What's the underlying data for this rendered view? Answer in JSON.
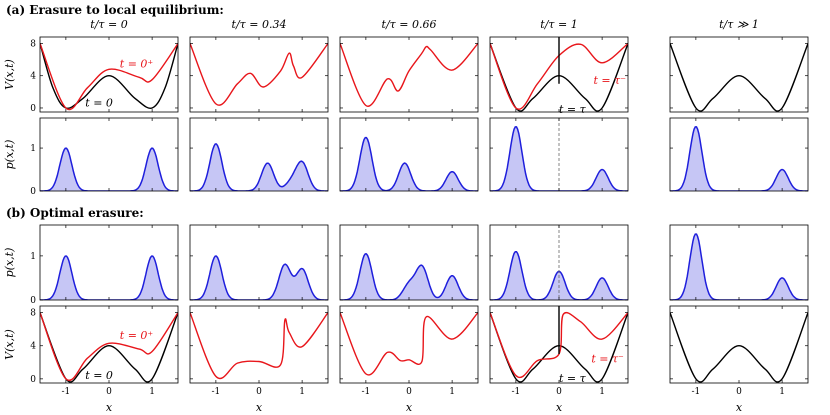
{
  "section_titles": {
    "a": "(a) Erasure to local equilibrium:",
    "b": "(b) Optimal erasure:"
  },
  "column_titles": [
    "t/τ = 0",
    "t/τ = 0.34",
    "t/τ = 0.66",
    "t/τ = 1",
    "t/τ ≫ 1"
  ],
  "axis_labels": {
    "V": "V(x,t)",
    "p": "p(x,t)",
    "x": "x"
  },
  "annotations": {
    "t0plus": "t = 0⁺",
    "t0": "t = 0",
    "ttau_minus": "t = τ⁻",
    "ttau": "t = τ"
  },
  "colors": {
    "V_initial": "#000000",
    "V_driven": "#e8161b",
    "p_line": "#1f1fdc",
    "p_fill": "#c6c6f5"
  },
  "chart_data": [
    {
      "type": "line",
      "title": "(a) Erasure to local equilibrium: potential V(x,t)",
      "x_ticks": [
        -1,
        0,
        1
      ],
      "y_ticks": [
        0,
        4,
        8
      ],
      "ylim": [
        -0.5,
        8.8
      ],
      "xlim": [
        -1.6,
        1.6
      ],
      "panels": [
        {
          "column": "t/τ = 0",
          "series": [
            {
              "name": "t = 0",
              "x": [
                -1.6,
                -1.3,
                -1,
                -0.6,
                0,
                0.6,
                1,
                1.3,
                1.6
              ],
              "y": [
                8,
                2.5,
                0,
                1.2,
                4,
                1.2,
                0,
                2.5,
                8
              ]
            },
            {
              "name": "t = 0⁺",
              "x": [
                -1.6,
                -1,
                -0.5,
                0,
                0.7,
                1,
                1.6
              ],
              "y": [
                8,
                0,
                2.5,
                4.8,
                3.8,
                3.5,
                8
              ]
            }
          ]
        },
        {
          "column": "t/τ = 0.34",
          "series": [
            {
              "name": "",
              "x": [
                -1.6,
                -1,
                -0.5,
                -0.2,
                0.1,
                0.5,
                0.7,
                0.8,
                1.0,
                1.6
              ],
              "y": [
                8,
                0.5,
                3,
                4.3,
                2.6,
                4.6,
                6.8,
                5.2,
                3.8,
                8
              ]
            }
          ]
        },
        {
          "column": "t/τ = 0.66",
          "series": [
            {
              "name": "",
              "x": [
                -1.6,
                -1,
                -0.5,
                -0.25,
                0,
                0.3,
                0.4,
                0.5,
                1.0,
                1.6
              ],
              "y": [
                8,
                0.3,
                3.6,
                2.1,
                4.6,
                6.8,
                7.6,
                7.2,
                4.7,
                8
              ]
            }
          ]
        },
        {
          "column": "t/τ = 1",
          "series": [
            {
              "name": "t = τ",
              "x": [
                -1.6,
                -1,
                -0.6,
                0,
                0.6,
                1,
                1.6
              ],
              "y": [
                8,
                0,
                1.2,
                4,
                1.2,
                0,
                8
              ]
            },
            {
              "name": "t = τ⁻",
              "x": [
                -1.6,
                -1,
                -0.5,
                0,
                0.5,
                1,
                1.6
              ],
              "y": [
                8,
                0,
                3,
                6.5,
                7.9,
                5.6,
                8
              ]
            }
          ]
        },
        {
          "column": "t/τ ≫ 1",
          "series": [
            {
              "name": "",
              "x": [
                -1.6,
                -1,
                -0.6,
                0,
                0.6,
                1,
                1.6
              ],
              "y": [
                8,
                0,
                1.2,
                4,
                1.2,
                0,
                8
              ]
            }
          ]
        }
      ]
    },
    {
      "type": "area",
      "title": "(a) Erasure to local equilibrium: probability density p(x,t)",
      "x_ticks": [
        -1,
        0,
        1
      ],
      "y_ticks": [
        0,
        1
      ],
      "ylim": [
        0,
        1.7
      ],
      "xlim": [
        -1.6,
        1.6
      ],
      "panels": [
        {
          "column": "t/τ = 0",
          "peaks": [
            [
              -1,
              1.0
            ],
            [
              1,
              1.0
            ]
          ]
        },
        {
          "column": "t/τ = 0.34",
          "peaks": [
            [
              -1,
              1.1
            ],
            [
              0.2,
              0.65
            ],
            [
              0.75,
              0.2
            ],
            [
              1,
              0.65
            ]
          ]
        },
        {
          "column": "t/τ = 0.66",
          "peaks": [
            [
              -1,
              1.25
            ],
            [
              -0.1,
              0.65
            ],
            [
              1,
              0.45
            ]
          ]
        },
        {
          "column": "t/τ = 1",
          "peaks": [
            [
              -1,
              1.5
            ],
            [
              1,
              0.5
            ]
          ]
        },
        {
          "column": "t/τ ≫ 1",
          "peaks": [
            [
              -1,
              1.5
            ],
            [
              1,
              0.5
            ]
          ]
        }
      ]
    },
    {
      "type": "area",
      "title": "(b) Optimal erasure: probability density p(x,t)",
      "x_ticks": [
        -1,
        0,
        1
      ],
      "y_ticks": [
        0,
        1
      ],
      "ylim": [
        0,
        1.7
      ],
      "xlim": [
        -1.6,
        1.6
      ],
      "panels": [
        {
          "column": "t/τ = 0",
          "peaks": [
            [
              -1,
              1.0
            ],
            [
              1,
              1.0
            ]
          ]
        },
        {
          "column": "t/τ = 0.34",
          "peaks": [
            [
              -1,
              1.0
            ],
            [
              0.6,
              0.8
            ],
            [
              1,
              0.7
            ]
          ]
        },
        {
          "column": "t/τ = 0.66",
          "peaks": [
            [
              -1,
              1.05
            ],
            [
              0.0,
              0.35
            ],
            [
              0.3,
              0.75
            ],
            [
              1,
              0.55
            ]
          ]
        },
        {
          "column": "t/τ = 1",
          "peaks": [
            [
              -1,
              1.1
            ],
            [
              0,
              0.65
            ],
            [
              1,
              0.5
            ]
          ]
        },
        {
          "column": "t/τ ≫ 1",
          "peaks": [
            [
              -1,
              1.5
            ],
            [
              1,
              0.5
            ]
          ]
        }
      ]
    },
    {
      "type": "line",
      "title": "(b) Optimal erasure: potential V(x,t)",
      "x_ticks": [
        -1,
        0,
        1
      ],
      "y_ticks": [
        0,
        4,
        8
      ],
      "ylim": [
        -0.5,
        8.8
      ],
      "xlim": [
        -1.6,
        1.6
      ],
      "panels": [
        {
          "column": "t/τ = 0",
          "series": [
            {
              "name": "t = 0",
              "x": [
                -1.6,
                -1,
                -0.6,
                0,
                0.6,
                1,
                1.6
              ],
              "y": [
                8,
                0,
                1.2,
                4,
                1.2,
                0,
                8
              ]
            },
            {
              "name": "t = 0⁺",
              "x": [
                -1.6,
                -1,
                -0.5,
                0,
                0.7,
                1,
                1.6
              ],
              "y": [
                8,
                0,
                2.5,
                4.3,
                3.6,
                3.3,
                8
              ]
            }
          ]
        },
        {
          "column": "t/τ = 0.34",
          "series": [
            {
              "name": "",
              "x": [
                -1.6,
                -1,
                -0.5,
                0,
                0.5,
                0.6,
                0.7,
                1.0,
                1.6
              ],
              "y": [
                8,
                0.3,
                1.9,
                2.1,
                1.7,
                7.1,
                5.6,
                3.9,
                8
              ]
            }
          ]
        },
        {
          "column": "t/τ = 0.66",
          "series": [
            {
              "name": "",
              "x": [
                -1.6,
                -1,
                -0.5,
                -0.2,
                0,
                0.3,
                0.4,
                1.0,
                1.6
              ],
              "y": [
                8,
                0.6,
                3.2,
                2.2,
                2.3,
                2.1,
                7.5,
                4.8,
                8
              ]
            }
          ]
        },
        {
          "column": "t/τ = 1",
          "series": [
            {
              "name": "t = τ",
              "x": [
                -1.6,
                -1,
                -0.6,
                0,
                0.6,
                1,
                1.6
              ],
              "y": [
                8,
                0,
                1.2,
                4,
                1.2,
                0,
                8
              ]
            },
            {
              "name": "t = τ⁻",
              "x": [
                -1.6,
                -1,
                -0.5,
                0,
                0.1,
                0.5,
                1,
                1.6
              ],
              "y": [
                8,
                0.4,
                2.2,
                3.0,
                7.8,
                6.9,
                4.8,
                8
              ]
            }
          ]
        },
        {
          "column": "t/τ ≫ 1",
          "series": [
            {
              "name": "",
              "x": [
                -1.6,
                -1,
                -0.6,
                0,
                0.6,
                1,
                1.6
              ],
              "y": [
                8,
                0,
                1.2,
                4,
                1.2,
                0,
                8
              ]
            }
          ]
        }
      ]
    }
  ]
}
